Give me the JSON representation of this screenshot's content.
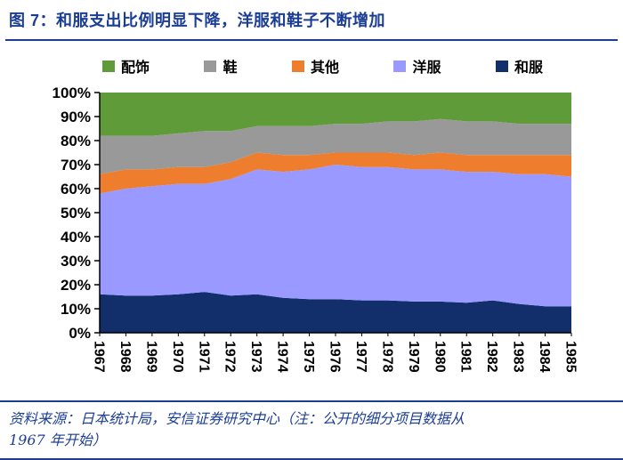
{
  "page": {
    "title": "图 7：和服支出比例明显下降，洋服和鞋子不断增加",
    "accent_color": "#1b3e94",
    "source_note_line1": "资料来源：日本统计局，安信证券研究中心（注：公开的细分项目数据从",
    "source_note_line2": "1967 年开始）"
  },
  "chart_data": {
    "type": "area",
    "stacked": true,
    "percent_stacked": true,
    "title": "和服支出比例明显下降，洋服和鞋子不断增加",
    "categories": [
      "1967",
      "1968",
      "1969",
      "1970",
      "1971",
      "1972",
      "1973",
      "1974",
      "1975",
      "1976",
      "1977",
      "1978",
      "1979",
      "1980",
      "1981",
      "1982",
      "1983",
      "1984",
      "1985"
    ],
    "ylim": [
      0,
      100
    ],
    "y_tick_labels": [
      "0%",
      "10%",
      "20%",
      "30%",
      "40%",
      "50%",
      "60%",
      "70%",
      "80%",
      "90%",
      "100%"
    ],
    "grid": false,
    "legend_position": "top",
    "legend": [
      {
        "label": "配饰",
        "color": "#5f9b38"
      },
      {
        "label": "鞋",
        "color": "#999999"
      },
      {
        "label": "其他",
        "color": "#ee7d2d"
      },
      {
        "label": "洋服",
        "color": "#9999ff"
      },
      {
        "label": "和服",
        "color": "#122f6b"
      }
    ],
    "series_order": "bottom-to-top",
    "series": [
      {
        "id": "kimono",
        "name": "和服",
        "color": "#122f6b",
        "values": [
          16,
          15.5,
          15.5,
          16,
          17,
          15.5,
          16,
          14.5,
          14,
          14,
          13.5,
          13.5,
          13,
          13,
          12.5,
          13.5,
          12,
          11,
          11
        ]
      },
      {
        "id": "western-clothes",
        "name": "洋服",
        "color": "#9999ff",
        "values": [
          42,
          44.5,
          45.5,
          46,
          45,
          48.5,
          52,
          52.5,
          54,
          56,
          55.5,
          55.5,
          55,
          55,
          54.5,
          53.5,
          54,
          55,
          54
        ]
      },
      {
        "id": "other",
        "name": "其他",
        "color": "#ee7d2d",
        "values": [
          8,
          8,
          7,
          7,
          7,
          7,
          7,
          7,
          6,
          5,
          6,
          6,
          6,
          7,
          7,
          7,
          8,
          8,
          9
        ]
      },
      {
        "id": "shoes",
        "name": "鞋",
        "color": "#999999",
        "values": [
          16,
          14,
          14,
          14,
          15,
          13,
          11,
          12,
          12,
          12,
          12,
          13,
          14,
          14,
          14,
          14,
          13,
          13,
          13
        ]
      },
      {
        "id": "accessories",
        "name": "配饰",
        "color": "#5f9b38",
        "values": [
          18,
          18,
          18,
          17,
          16,
          16,
          14,
          14,
          14,
          13,
          13,
          12,
          12,
          11,
          12,
          12,
          13,
          13,
          13
        ]
      }
    ]
  }
}
